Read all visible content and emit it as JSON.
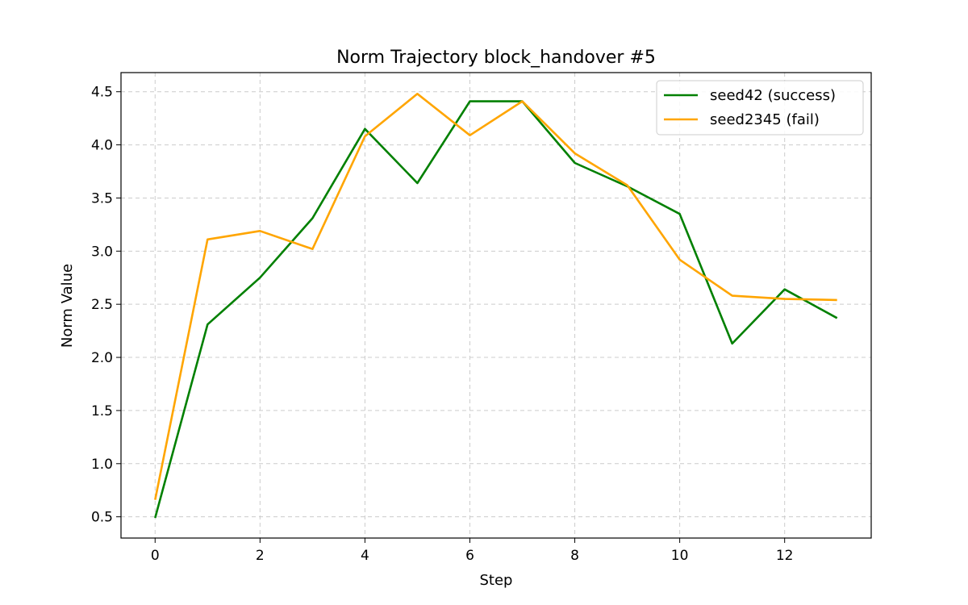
{
  "chart_data": {
    "type": "line",
    "title": "Norm Trajectory block_handover #5",
    "xlabel": "Step",
    "ylabel": "Norm Value",
    "xlim": [
      -0.65,
      13.65
    ],
    "ylim": [
      0.3,
      4.68
    ],
    "xticks": [
      0,
      2,
      4,
      6,
      8,
      10,
      12
    ],
    "xtick_labels": [
      "0",
      "2",
      "4",
      "6",
      "8",
      "10",
      "12"
    ],
    "yticks": [
      0.5,
      1.0,
      1.5,
      2.0,
      2.5,
      3.0,
      3.5,
      4.0,
      4.5
    ],
    "ytick_labels": [
      "0.5",
      "1.0",
      "1.5",
      "2.0",
      "2.5",
      "3.0",
      "3.5",
      "4.0",
      "4.5"
    ],
    "grid": true,
    "legend_position": "top-right",
    "x": [
      0,
      1,
      2,
      3,
      4,
      5,
      6,
      7,
      8,
      9,
      10,
      11,
      12,
      13
    ],
    "series": [
      {
        "name": "seed42 (success)",
        "color": "#008000",
        "values": [
          0.49,
          2.31,
          2.75,
          3.31,
          4.15,
          3.64,
          4.41,
          4.41,
          3.83,
          3.61,
          3.35,
          2.13,
          2.64,
          2.37
        ]
      },
      {
        "name": "seed2345 (fail)",
        "color": "#FFA500",
        "values": [
          0.66,
          3.11,
          3.19,
          3.02,
          4.08,
          4.48,
          4.09,
          4.41,
          3.92,
          3.62,
          2.92,
          2.58,
          2.55,
          2.54
        ]
      }
    ]
  }
}
